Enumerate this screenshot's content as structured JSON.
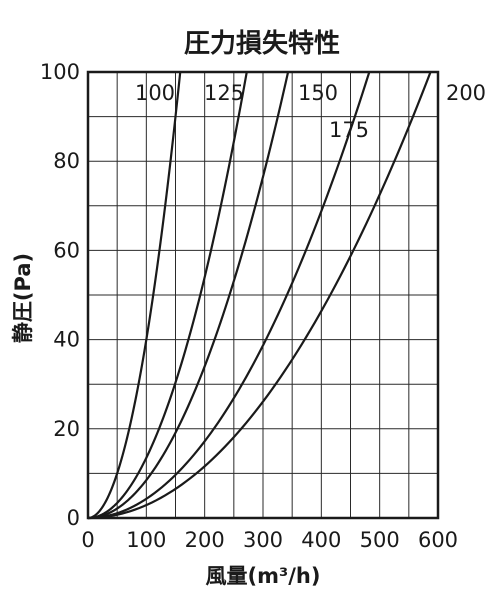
{
  "chart_data": {
    "type": "line",
    "title": "圧力損失特性",
    "xlabel": "風量(m³/h)",
    "ylabel": "静圧(Pa)",
    "xlim": [
      0,
      600
    ],
    "ylim": [
      0,
      100
    ],
    "x_ticks": [
      "0",
      "100",
      "200",
      "300",
      "400",
      "500",
      "600"
    ],
    "y_ticks": [
      "0",
      "20",
      "40",
      "60",
      "80",
      "100"
    ],
    "grid": true,
    "x_minor_step": 50,
    "y_minor_step": 10,
    "series": [
      {
        "name": "100",
        "k": 0.004,
        "x": [
          0,
          50,
          100,
          150,
          158
        ],
        "values": [
          0,
          10,
          40,
          90,
          100
        ]
      },
      {
        "name": "125",
        "k": 0.00135,
        "x": [
          0,
          50,
          100,
          150,
          200,
          250,
          272
        ],
        "values": [
          0,
          3.4,
          13.5,
          30.4,
          54,
          84.4,
          100
        ]
      },
      {
        "name": "150",
        "k": 0.00085,
        "x": [
          0,
          50,
          100,
          150,
          200,
          250,
          300,
          343
        ],
        "values": [
          0,
          2.1,
          8.5,
          19.1,
          34,
          53.1,
          76.5,
          100
        ]
      },
      {
        "name": "175",
        "k": 0.00043,
        "x": [
          0,
          100,
          200,
          300,
          400,
          482
        ],
        "values": [
          0,
          4.3,
          17.2,
          38.7,
          68.8,
          100
        ]
      },
      {
        "name": "200",
        "k": 0.00029,
        "x": [
          0,
          100,
          200,
          300,
          400,
          500,
          587
        ],
        "values": [
          0,
          2.9,
          11.6,
          26.1,
          46.4,
          72.5,
          100
        ]
      }
    ]
  }
}
